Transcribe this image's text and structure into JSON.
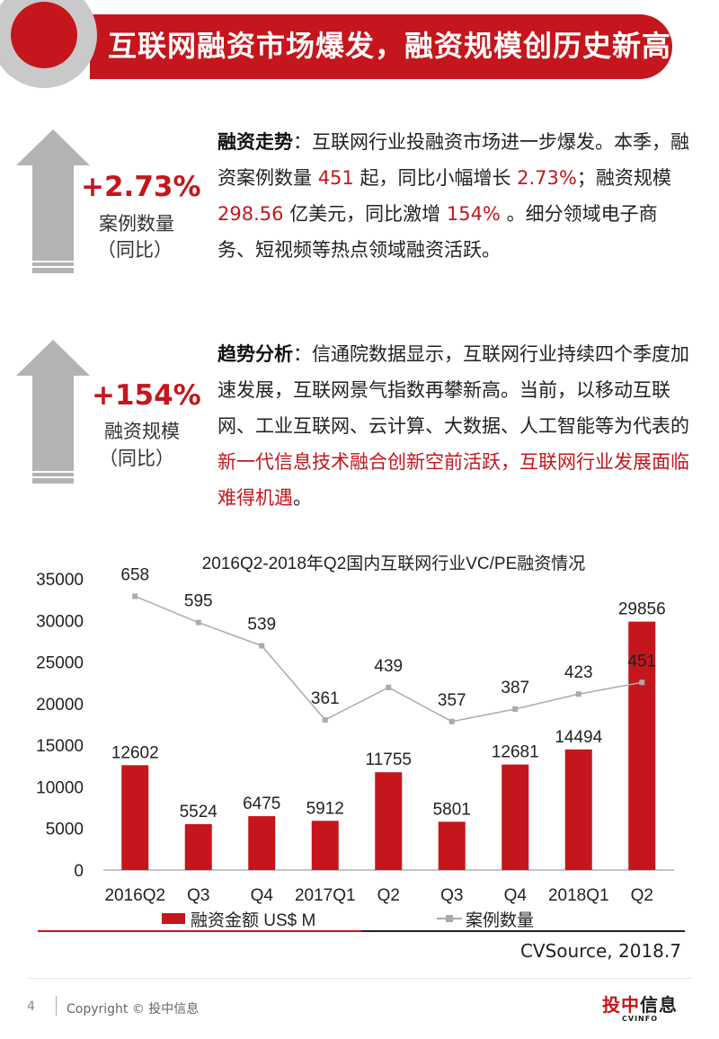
{
  "header": {
    "title": "互联网融资市场爆发，融资规模创历史新高"
  },
  "stats": [
    {
      "value": "+2.73%",
      "label": "案例数量",
      "sub": "（同比）"
    },
    {
      "value": "+154%",
      "label": "融资规模",
      "sub": "（同比）"
    }
  ],
  "para1": {
    "heading": "融资走势",
    "t1": "：互联网行业投融资市场进一步爆发。本季，融资案例数量 ",
    "v1": "451",
    "t2": " 起，同比小幅增长 ",
    "v2": "2.73%",
    "t3": "；融资规模 ",
    "v3": "298.56",
    "t4": " 亿美元，同比激增 ",
    "v4": "154%",
    "t5": " 。细分领域电子商务、短视频等热点领域融资活跃。"
  },
  "para2": {
    "heading": "趋势分析",
    "t1": "：信通院数据显示，互联网行业持续四个季度加速发展，互联网景气指数再攀新高。当前，以移动互联网、工业互联网、云计算、大数据、人工智能等为代表的",
    "highlight": "新一代信息技术融合创新空前活跃，互联网行业发展面临难得机遇",
    "t2": "。"
  },
  "chart_data": {
    "type": "bar",
    "title": "2016Q2-2018年Q2国内互联网行业VC/PE融资情况",
    "categories": [
      "2016Q2",
      "Q3",
      "Q4",
      "2017Q1",
      "Q2",
      "Q3",
      "Q4",
      "2018Q1",
      "Q2"
    ],
    "series": [
      {
        "name": "融资金额 US$ M",
        "type": "bar",
        "values": [
          12602,
          5524,
          6475,
          5912,
          11755,
          5801,
          12681,
          14494,
          29856
        ]
      },
      {
        "name": "案例数量",
        "type": "line",
        "values": [
          658,
          595,
          539,
          361,
          439,
          357,
          387,
          423,
          451
        ]
      }
    ],
    "y_ticks": [
      "35000",
      "30000",
      "25000",
      "20000",
      "15000",
      "10000",
      "5000",
      "0"
    ],
    "ylim": [
      0,
      35000
    ],
    "legend_position": "bottom",
    "colors": {
      "bar": "#c4161c",
      "line": "#aaaaaa"
    }
  },
  "source": "CVSource, 2018.7",
  "footer": {
    "page": "4",
    "copyright": "Copyright © 投中信息",
    "logo_main": "投中",
    "logo_main2": "信息",
    "logo_sub": "CVINFO"
  },
  "colors": {
    "accent": "#c4161c",
    "arrow": "#b0b0b0"
  }
}
